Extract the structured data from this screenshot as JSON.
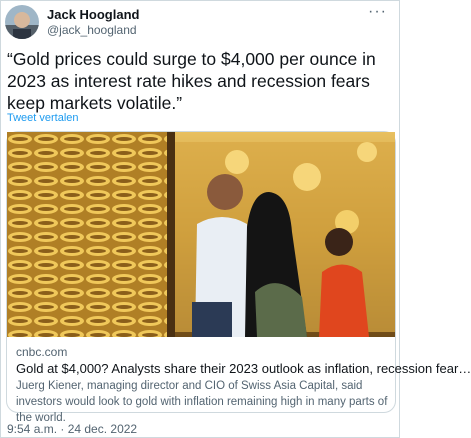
{
  "tweet": {
    "author": {
      "name": "Jack Hoogland",
      "handle": "@jack_hoogland"
    },
    "text": "“Gold prices could surge to $4,000 per ounce in 2023 as interest rate hikes and recession fears keep markets volatile.”",
    "translate": "Tweet vertalen",
    "card": {
      "domain": "cnbc.com",
      "title": "Gold at $4,000? Analysts share their 2023 outlook as inflation, recession fear…",
      "description": "Juerg Kiener, managing director and CIO of Swiss Asia Capital, said investors would look to gold with inflation remaining high in many parts of the world."
    },
    "timestamp": "9:54 a.m. · 24 dec. 2022"
  }
}
